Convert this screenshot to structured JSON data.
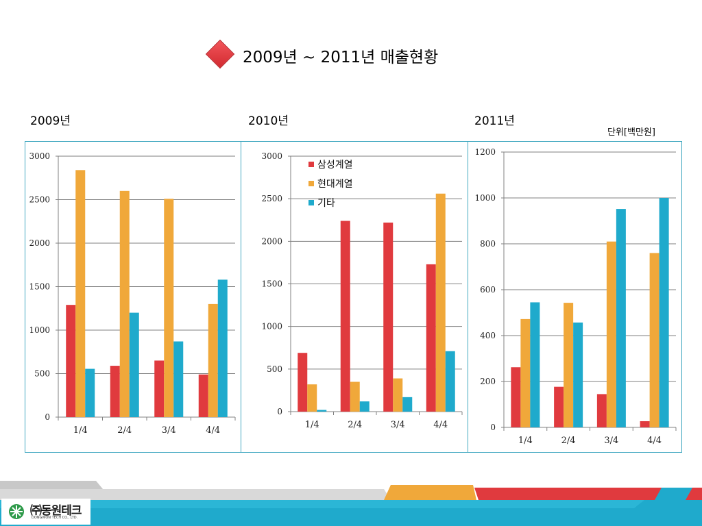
{
  "header": {
    "title": "2009년 ~ 2011년 매출현황",
    "unit": "단위[백만원]"
  },
  "colors": {
    "samsung": "#e03a3e",
    "hyundai": "#f0a83a",
    "other": "#1faacc",
    "frame": "#3fa7c0"
  },
  "logo": {
    "name": "㈜동원테크",
    "sub": "DONGWON TECH CO., LTD."
  },
  "chart_data": [
    {
      "type": "bar",
      "title": "2009년",
      "categories": [
        "1/4",
        "2/4",
        "3/4",
        "4/4"
      ],
      "ylim": [
        0,
        3000
      ],
      "yticks": [
        0,
        500,
        1000,
        1500,
        2000,
        2500,
        3000
      ],
      "grid": true,
      "series": [
        {
          "name": "삼성계열",
          "values": [
            1290,
            590,
            650,
            490
          ]
        },
        {
          "name": "현대계열",
          "values": [
            2840,
            2600,
            2510,
            1300
          ]
        },
        {
          "name": "기타",
          "values": [
            555,
            1200,
            870,
            1580
          ]
        }
      ]
    },
    {
      "type": "bar",
      "title": "2010년",
      "categories": [
        "1/4",
        "2/4",
        "3/4",
        "4/4"
      ],
      "ylim": [
        0,
        3000
      ],
      "yticks": [
        0,
        500,
        1000,
        1500,
        2000,
        2500,
        3000
      ],
      "grid": true,
      "legend": "top-left",
      "series": [
        {
          "name": "삼성계열",
          "values": [
            690,
            2240,
            2220,
            1730
          ]
        },
        {
          "name": "현대계열",
          "values": [
            320,
            350,
            390,
            2560
          ]
        },
        {
          "name": "기타",
          "values": [
            20,
            120,
            170,
            710
          ]
        }
      ]
    },
    {
      "type": "bar",
      "title": "2011년",
      "categories": [
        "1/4",
        "2/4",
        "3/4",
        "4/4"
      ],
      "ylim": [
        0,
        1200
      ],
      "yticks": [
        0,
        200,
        400,
        600,
        800,
        1000,
        1200
      ],
      "grid": true,
      "series": [
        {
          "name": "삼성계열",
          "values": [
            262,
            177,
            145,
            27
          ]
        },
        {
          "name": "현대계열",
          "values": [
            472,
            543,
            810,
            760
          ]
        },
        {
          "name": "기타",
          "values": [
            545,
            457,
            952,
            1000
          ]
        }
      ]
    }
  ]
}
